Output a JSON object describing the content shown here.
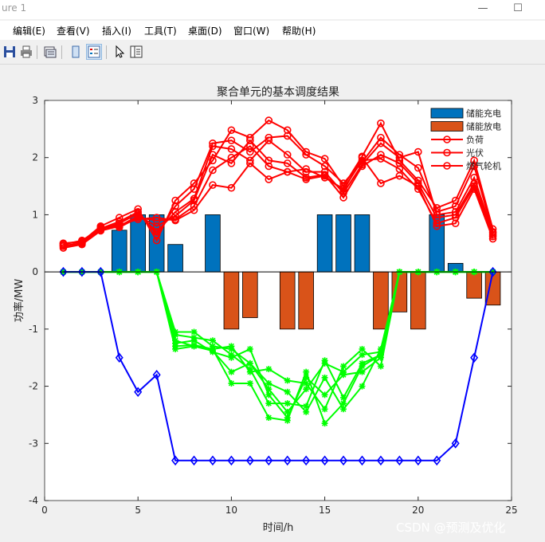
{
  "window": {
    "title": "ure 1",
    "minimize_glyph": "—",
    "maximize_glyph": "☐"
  },
  "menu": [
    "编辑(E)",
    "查看(V)",
    "插入(I)",
    "工具(T)",
    "桌面(D)",
    "窗口(W)",
    "帮助(H)"
  ],
  "toolbar": {
    "icons": [
      "save-icon",
      "print-icon",
      "print-preview-icon",
      "figure-icon",
      "legend-icon",
      "pointer-icon",
      "property-editor-icon"
    ]
  },
  "watermark": "CSDN @预测及优化",
  "colors": {
    "charge": "#0072BD",
    "discharge": "#D95319",
    "load": "#FF0000",
    "pv": "#00FF00",
    "turbine": "#0000FF"
  },
  "chart_data": {
    "type": "bar+line",
    "title": "聚合单元的基本调度结果",
    "xlabel": "时间/h",
    "ylabel": "功率/MW",
    "xlim": [
      0,
      25
    ],
    "ylim": [
      -4,
      3
    ],
    "xticks": [
      0,
      5,
      10,
      15,
      20,
      25
    ],
    "yticks": [
      -4,
      -3,
      -2,
      -1,
      0,
      1,
      2,
      3
    ],
    "grid": false,
    "legend": {
      "placement": "top-right",
      "entries": [
        "储能充电",
        "储能放电",
        "负荷",
        "光伏",
        "燃气轮机"
      ]
    },
    "x": [
      1,
      2,
      3,
      4,
      5,
      6,
      7,
      8,
      9,
      10,
      11,
      12,
      13,
      14,
      15,
      16,
      17,
      18,
      19,
      20,
      21,
      22,
      23,
      24
    ],
    "bar_series": [
      {
        "name": "储能充电",
        "values": [
          0,
          0,
          0,
          0.73,
          1,
          1,
          0.48,
          0,
          1,
          0,
          0,
          0,
          0,
          0,
          1,
          1,
          1,
          0,
          0,
          0,
          1,
          0.15,
          0,
          0
        ]
      },
      {
        "name": "储能放电",
        "values": [
          0,
          0,
          0,
          0,
          0,
          0,
          0,
          0,
          0,
          -1,
          -0.8,
          0,
          -1,
          -1,
          0,
          0,
          0,
          -1,
          -0.7,
          -1,
          0,
          0,
          -0.46,
          -0.58
        ]
      }
    ],
    "load_series": [
      {
        "name": "负荷",
        "values": [
          0.5,
          0.53,
          0.8,
          0.95,
          1.1,
          0.55,
          1.25,
          1.55,
          1.95,
          2.48,
          2.35,
          2.65,
          2.48,
          2.1,
          1.98,
          1.5,
          2.02,
          2.6,
          1.95,
          1.6,
          1.12,
          1.25,
          1.95,
          0.75
        ]
      },
      {
        "name": "负荷",
        "values": [
          0.48,
          0.55,
          0.76,
          0.88,
          1.05,
          0.65,
          1.15,
          1.45,
          2.25,
          2.3,
          2.1,
          2.35,
          2.38,
          2.05,
          1.85,
          1.55,
          1.92,
          2.35,
          2.05,
          1.82,
          1.05,
          1.15,
          1.85,
          0.7
        ]
      },
      {
        "name": "负荷",
        "values": [
          0.45,
          0.5,
          0.74,
          0.85,
          1.02,
          0.7,
          1.05,
          1.28,
          2.2,
          2.15,
          1.95,
          2.3,
          2.05,
          1.75,
          1.75,
          1.38,
          1.88,
          2.25,
          2.0,
          2.1,
          1.0,
          1.05,
          1.65,
          0.68
        ]
      },
      {
        "name": "负荷",
        "values": [
          0.42,
          0.48,
          0.72,
          0.8,
          0.98,
          0.8,
          0.98,
          1.25,
          2.05,
          1.9,
          2.3,
          1.95,
          1.9,
          1.65,
          1.7,
          1.3,
          1.85,
          2.05,
          1.9,
          1.55,
          0.95,
          1.0,
          1.55,
          0.65
        ]
      },
      {
        "name": "负荷",
        "values": [
          0.5,
          0.52,
          0.78,
          0.78,
          0.95,
          0.9,
          0.92,
          1.15,
          1.78,
          2.0,
          2.2,
          1.85,
          1.75,
          1.8,
          1.65,
          1.45,
          1.95,
          1.98,
          1.8,
          1.45,
          0.85,
          0.95,
          1.5,
          0.62
        ]
      },
      {
        "name": "负荷",
        "values": [
          0.46,
          0.5,
          0.75,
          0.82,
          0.92,
          0.95,
          0.9,
          1.08,
          1.52,
          1.47,
          1.9,
          1.62,
          1.75,
          1.62,
          1.68,
          1.42,
          2.0,
          1.55,
          1.68,
          1.5,
          0.8,
          0.85,
          1.45,
          0.58
        ]
      }
    ],
    "pv_series": [
      {
        "name": "光伏",
        "values": [
          0,
          0,
          0,
          0,
          0,
          0,
          -1.05,
          -1.05,
          -1.3,
          -1.35,
          -1.6,
          -2.05,
          -2.45,
          -2.05,
          -1.6,
          -1.75,
          -1.45,
          -1.4,
          0,
          0,
          0,
          0,
          0,
          0
        ]
      },
      {
        "name": "光伏",
        "values": [
          0,
          0,
          0,
          0,
          0,
          0,
          -1.1,
          -1.15,
          -1.2,
          -1.45,
          -1.7,
          -2.3,
          -2.3,
          -2.35,
          -1.55,
          -2.2,
          -1.6,
          -1.45,
          0,
          0,
          0,
          0,
          0,
          0
        ]
      },
      {
        "name": "光伏",
        "values": [
          0,
          0,
          0,
          0,
          0,
          0,
          -1.2,
          -1.3,
          -1.35,
          -1.3,
          -1.75,
          -1.7,
          -1.9,
          -1.95,
          -2.4,
          -1.65,
          -1.35,
          -1.65,
          0,
          0,
          0,
          0,
          0,
          0
        ]
      },
      {
        "name": "光伏",
        "values": [
          0,
          0,
          0,
          0,
          0,
          0,
          -1.25,
          -1.2,
          -1.4,
          -1.5,
          -1.35,
          -2.15,
          -2.55,
          -1.85,
          -2.15,
          -1.8,
          -1.75,
          -1.5,
          0,
          0,
          0,
          0,
          0,
          0
        ]
      },
      {
        "name": "光伏",
        "values": [
          0,
          0,
          0,
          0,
          0,
          0,
          -1.35,
          -1.3,
          -1.38,
          -1.75,
          -1.6,
          -1.95,
          -2.1,
          -2.45,
          -1.85,
          -2.4,
          -2.0,
          -1.35,
          0,
          0,
          0,
          0,
          0,
          0
        ]
      },
      {
        "name": "光伏",
        "values": [
          0,
          0,
          0,
          0,
          0,
          0,
          -1.3,
          -1.28,
          -1.35,
          -1.95,
          -1.95,
          -2.55,
          -2.6,
          -1.75,
          -2.65,
          -2.3,
          -1.65,
          -1.45,
          0,
          0,
          0,
          0,
          0,
          0
        ]
      }
    ],
    "turbine_series": [
      {
        "name": "燃气轮机",
        "values": [
          0,
          0,
          0,
          -1.5,
          -2.1,
          -1.8,
          -3.3,
          -3.3,
          -3.3,
          -3.3,
          -3.3,
          -3.3,
          -3.3,
          -3.3,
          -3.3,
          -3.3,
          -3.3,
          -3.3,
          -3.3,
          -3.3,
          -3.3,
          -3.0,
          -1.5,
          0
        ]
      }
    ]
  }
}
